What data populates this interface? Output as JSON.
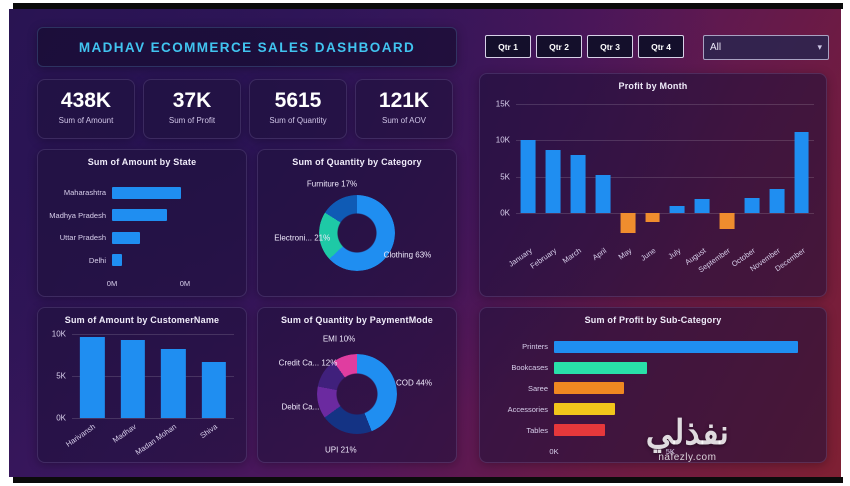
{
  "header": {
    "title": "MADHAV ECOMMERCE SALES DASHBOARD",
    "quarter_buttons": [
      {
        "label": "Qtr 1"
      },
      {
        "label": "Qtr 2"
      },
      {
        "label": "Qtr 3"
      },
      {
        "label": "Qtr 4"
      }
    ],
    "filter_dropdown": {
      "value": "All"
    }
  },
  "kpis": [
    {
      "value": "438K",
      "label": "Sum of Amount"
    },
    {
      "value": "37K",
      "label": "Sum of Profit"
    },
    {
      "value": "5615",
      "label": "Sum of Quantity"
    },
    {
      "value": "121K",
      "label": "Sum of AOV"
    }
  ],
  "watermark": {
    "main": "نفذلي",
    "sub": "nafezly.com"
  },
  "chart_data": [
    {
      "id": "sum-of-amount-by-state",
      "type": "bar",
      "orientation": "horizontal",
      "title": "Sum of Amount by State",
      "categories": [
        "Maharashtra",
        "Madhya Pradesh",
        "Uttar Pradesh",
        "Delhi"
      ],
      "values": [
        95000,
        76000,
        38000,
        14000
      ],
      "xlim": [
        0,
        170000
      ],
      "xticks": [
        {
          "label": "0M",
          "value": 0
        },
        {
          "label": "0M",
          "value": 100000
        }
      ],
      "bar_color": "#1f8ef1"
    },
    {
      "id": "sum-of-quantity-by-category",
      "type": "pie",
      "donut": true,
      "title": "Sum of Quantity by Category",
      "slices": [
        {
          "name": "Clothing",
          "label": "Clothing 63%",
          "value": 63,
          "color": "#1f8ef1"
        },
        {
          "name": "Electronics",
          "label": "Electroni... 21%",
          "value": 21,
          "color": "#1ec9a6"
        },
        {
          "name": "Furniture",
          "label": "Furniture 17%",
          "value": 17,
          "color": "#0f5bb5"
        }
      ]
    },
    {
      "id": "profit-by-month",
      "type": "bar",
      "orientation": "vertical",
      "title": "Profit by Month",
      "categories": [
        "January",
        "February",
        "March",
        "April",
        "May",
        "June",
        "July",
        "August",
        "September",
        "October",
        "November",
        "December"
      ],
      "values": [
        10000,
        8700,
        8000,
        5200,
        -2800,
        -1200,
        900,
        1900,
        -2200,
        2100,
        3300,
        11200
      ],
      "ylim": [
        -4000,
        15000
      ],
      "yticks": [
        {
          "label": "15K",
          "value": 15000
        },
        {
          "label": "10K",
          "value": 10000
        },
        {
          "label": "5K",
          "value": 5000
        },
        {
          "label": "0K",
          "value": 0
        }
      ],
      "positive_color": "#1f8ef1",
      "negative_color": "#ef8d2e"
    },
    {
      "id": "sum-of-amount-by-customername",
      "type": "bar",
      "orientation": "vertical",
      "title": "Sum of Amount by CustomerName",
      "categories": [
        "Harivansh",
        "Madhav",
        "Madan Mohan",
        "Shiva"
      ],
      "values": [
        9700,
        9300,
        8200,
        6700
      ],
      "ylim": [
        0,
        10000
      ],
      "yticks": [
        {
          "label": "10K",
          "value": 10000
        },
        {
          "label": "5K",
          "value": 5000
        },
        {
          "label": "0K",
          "value": 0
        }
      ],
      "positive_color": "#1f8ef1",
      "negative_color": "#ef8d2e"
    },
    {
      "id": "sum-of-quantity-by-paymentmode",
      "type": "pie",
      "donut": true,
      "title": "Sum of Quantity by PaymentMode",
      "slices": [
        {
          "name": "COD",
          "label": "COD 44%",
          "value": 44,
          "color": "#1f8ef1"
        },
        {
          "name": "UPI",
          "label": "UPI 21%",
          "value": 21,
          "color": "#143384"
        },
        {
          "name": "Debit Card",
          "label": "Debit Ca...",
          "value": 13,
          "color": "#6b2aa0"
        },
        {
          "name": "Credit Card",
          "label": "Credit Ca... 12%",
          "value": 12,
          "color": "#40207c"
        },
        {
          "name": "EMI",
          "label": "EMI 10%",
          "value": 10,
          "color": "#e03da0"
        }
      ]
    },
    {
      "id": "sum-of-profit-by-subcategory",
      "type": "bar",
      "orientation": "horizontal",
      "title": "Sum of Profit by Sub-Category",
      "categories": [
        "Printers",
        "Bookcases",
        "Saree",
        "Accessories",
        "Tables"
      ],
      "values": [
        10500,
        4000,
        3000,
        2600,
        2200
      ],
      "xlim": [
        0,
        11000
      ],
      "xticks": [
        {
          "label": "0K",
          "value": 0
        },
        {
          "label": "5K",
          "value": 5000
        }
      ],
      "colors": [
        "#1f8ef1",
        "#29e0a9",
        "#f08821",
        "#f2c51b",
        "#e5383b"
      ]
    }
  ]
}
